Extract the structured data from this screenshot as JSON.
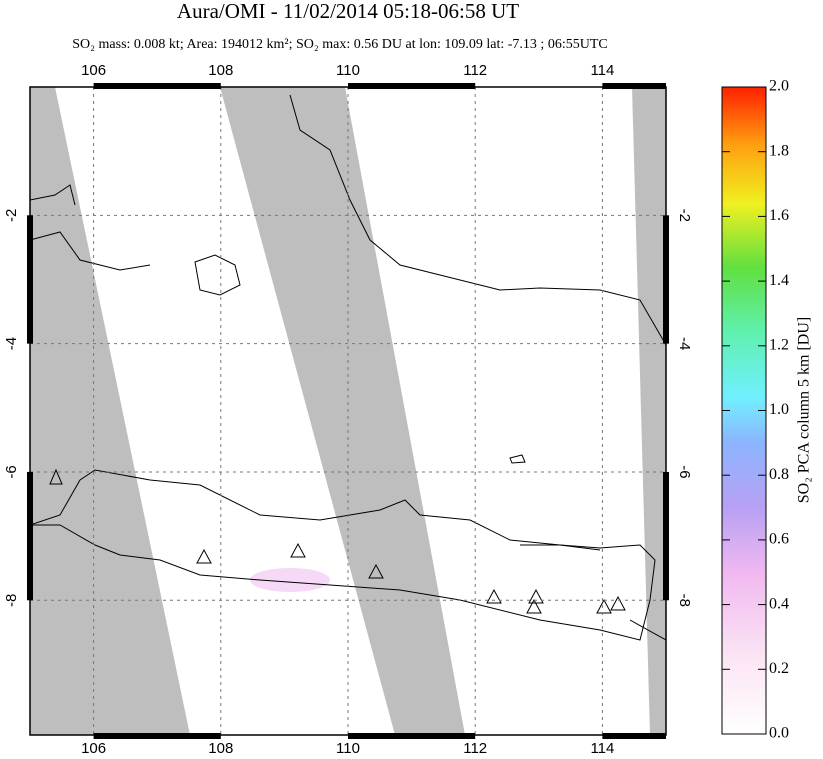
{
  "chart_data": {
    "type": "map",
    "title": "Aura/OMI - 11/02/2014 05:18-06:58 UT",
    "subtitle": "SO₂ mass: 0.008 kt; Area: 194012 km²; SO₂ max: 0.56 DU at lon: 109.09 lat: -7.13 ; 06:55UTC",
    "xlim": [
      105,
      115
    ],
    "ylim": [
      -10.1,
      0
    ],
    "xticks": [
      106,
      108,
      110,
      112,
      114
    ],
    "yticks": [
      -2,
      -4,
      -6,
      -8
    ],
    "grid": true,
    "colorbar": {
      "label": "SO₂ PCA column 5 km [DU]",
      "lim": [
        0,
        2
      ],
      "ticks": [
        {
          "value": 0,
          "label": "0.0"
        },
        {
          "value": 0.2,
          "label": "0.2"
        },
        {
          "value": 0.4,
          "label": "0.4"
        },
        {
          "value": 0.6,
          "label": "0.6"
        },
        {
          "value": 0.8,
          "label": "0.8"
        },
        {
          "value": 1,
          "label": "1.0"
        },
        {
          "value": 1.2,
          "label": "1.2"
        },
        {
          "value": 1.4,
          "label": "1.4"
        },
        {
          "value": 1.6,
          "label": "1.6"
        },
        {
          "value": 1.8,
          "label": "1.8"
        },
        {
          "value": 2,
          "label": "2.0"
        }
      ]
    }
  }
}
